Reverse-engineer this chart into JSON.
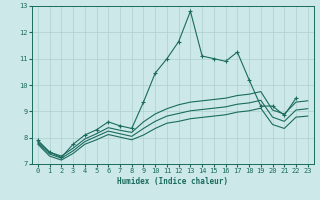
{
  "xlabel": "Humidex (Indice chaleur)",
  "xlim": [
    -0.5,
    23.5
  ],
  "ylim": [
    7,
    13
  ],
  "xticks": [
    0,
    1,
    2,
    3,
    4,
    5,
    6,
    7,
    8,
    9,
    10,
    11,
    12,
    13,
    14,
    15,
    16,
    17,
    18,
    19,
    20,
    21,
    22,
    23
  ],
  "yticks": [
    7,
    8,
    9,
    10,
    11,
    12,
    13
  ],
  "bg_color": "#cde8e8",
  "grid_color": "#aed0d0",
  "line_color": "#1a6b5e",
  "series_main": {
    "x": [
      0,
      1,
      2,
      3,
      4,
      5,
      6,
      7,
      8,
      9,
      10,
      11,
      12,
      13,
      14,
      15,
      16,
      17,
      18,
      19,
      20,
      21,
      22
    ],
    "y": [
      7.9,
      7.45,
      7.25,
      7.75,
      8.1,
      8.3,
      8.6,
      8.45,
      8.35,
      9.35,
      10.45,
      11.0,
      11.65,
      12.8,
      11.1,
      11.0,
      10.9,
      11.25,
      10.2,
      9.2,
      9.2,
      8.85,
      9.5
    ]
  },
  "series_upper": {
    "x": [
      0,
      1,
      2,
      3,
      4,
      5,
      6,
      7,
      8,
      9,
      10,
      11,
      12,
      13,
      14,
      15,
      16,
      17,
      18,
      19,
      20,
      21,
      22,
      23
    ],
    "y": [
      7.85,
      7.45,
      7.3,
      7.6,
      7.95,
      8.15,
      8.38,
      8.28,
      8.2,
      8.6,
      8.9,
      9.1,
      9.25,
      9.35,
      9.4,
      9.45,
      9.5,
      9.6,
      9.65,
      9.75,
      9.05,
      8.9,
      9.35,
      9.4
    ]
  },
  "series_mid": {
    "x": [
      0,
      1,
      2,
      3,
      4,
      5,
      6,
      7,
      8,
      9,
      10,
      11,
      12,
      13,
      14,
      15,
      16,
      17,
      18,
      19,
      20,
      21,
      22,
      23
    ],
    "y": [
      7.8,
      7.38,
      7.22,
      7.5,
      7.85,
      8.05,
      8.25,
      8.15,
      8.05,
      8.35,
      8.62,
      8.82,
      8.92,
      9.02,
      9.07,
      9.12,
      9.17,
      9.27,
      9.32,
      9.42,
      8.78,
      8.62,
      9.05,
      9.1
    ]
  },
  "series_lower": {
    "x": [
      0,
      1,
      2,
      3,
      4,
      5,
      6,
      7,
      8,
      9,
      10,
      11,
      12,
      13,
      14,
      15,
      16,
      17,
      18,
      19,
      20,
      21,
      22,
      23
    ],
    "y": [
      7.75,
      7.3,
      7.15,
      7.4,
      7.75,
      7.92,
      8.12,
      8.02,
      7.92,
      8.1,
      8.35,
      8.55,
      8.62,
      8.72,
      8.77,
      8.82,
      8.87,
      8.97,
      9.02,
      9.12,
      8.5,
      8.35,
      8.78,
      8.82
    ]
  }
}
